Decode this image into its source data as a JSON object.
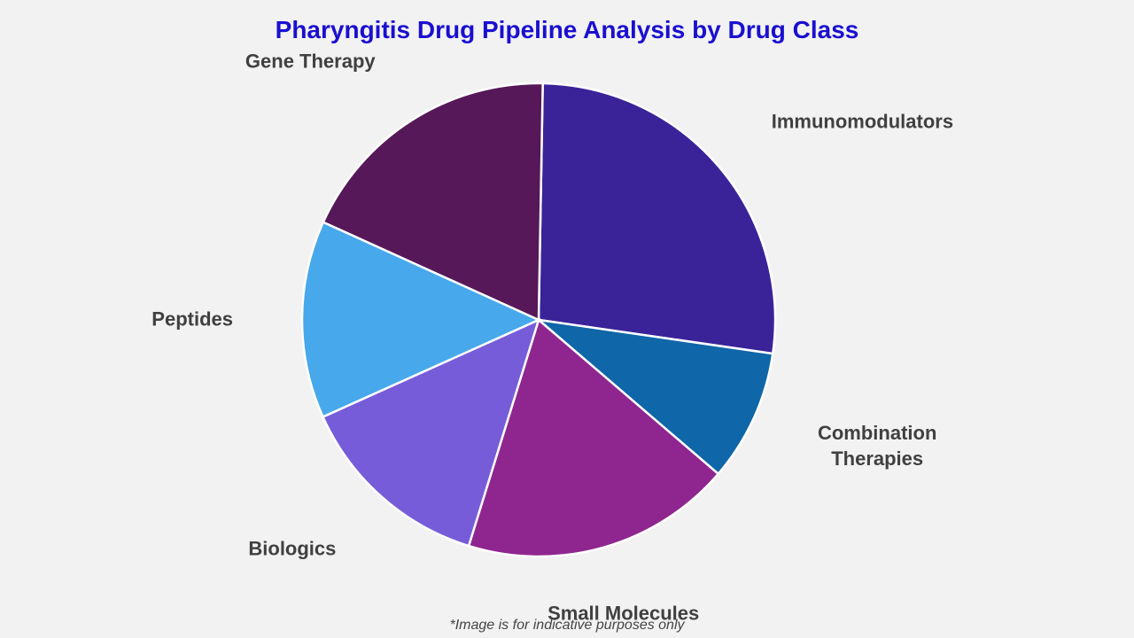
{
  "title": "Pharyngitis Drug Pipeline Analysis by Drug Class",
  "footnote": "*Image is for indicative purposes only",
  "chart_data": {
    "type": "pie",
    "title": "Pharyngitis Drug Pipeline Analysis by Drug Class",
    "slices": [
      {
        "label": "Immunomodulators",
        "lines": [
          "Immunomodulators"
        ],
        "value": 27,
        "color": "#3a2399"
      },
      {
        "label": "Combination Therapies",
        "lines": [
          "Combination",
          "Therapies"
        ],
        "value": 9,
        "color": "#0f66a8"
      },
      {
        "label": "Small Molecules",
        "lines": [
          "Small Molecules"
        ],
        "value": 18.5,
        "color": "#8f268f"
      },
      {
        "label": "Biologics",
        "lines": [
          "Biologics"
        ],
        "value": 13.5,
        "color": "#775cd9"
      },
      {
        "label": "Peptides",
        "lines": [
          "Peptides"
        ],
        "value": 13.5,
        "color": "#47a8eb"
      },
      {
        "label": "Gene Therapy",
        "lines": [
          "Gene Therapy"
        ],
        "value": 18.5,
        "color": "#561858"
      }
    ]
  }
}
